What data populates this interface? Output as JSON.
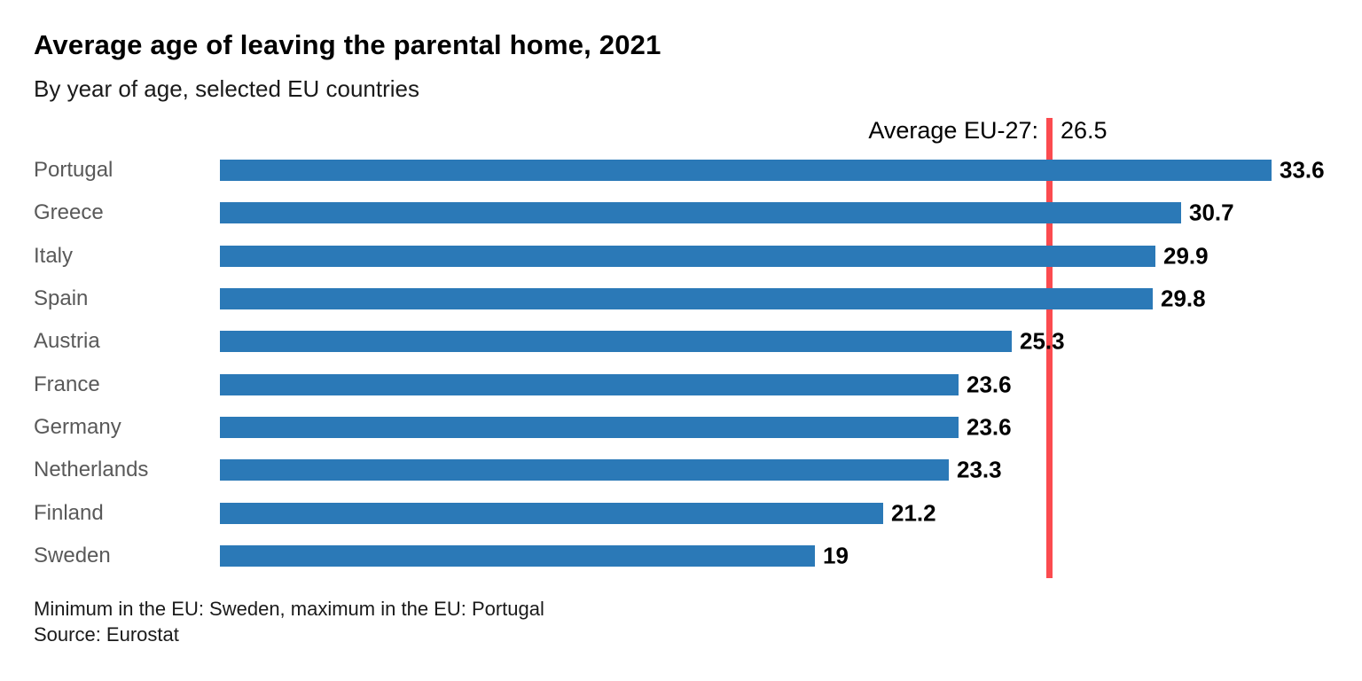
{
  "chart_data": {
    "type": "bar",
    "orientation": "horizontal",
    "title": "Average age of leaving the parental home, 2021",
    "subtitle": "By year of age, selected EU countries",
    "categories": [
      "Portugal",
      "Greece",
      "Italy",
      "Spain",
      "Austria",
      "France",
      "Germany",
      "Netherlands",
      "Finland",
      "Sweden"
    ],
    "values": [
      33.6,
      30.7,
      29.9,
      29.8,
      25.3,
      23.6,
      23.6,
      23.3,
      21.2,
      19
    ],
    "value_labels": [
      "33.6",
      "30.7",
      "29.9",
      "29.8",
      "25.3",
      "23.6",
      "23.6",
      "23.3",
      "21.2",
      "19"
    ],
    "reference_line": {
      "label": "Average EU-27:",
      "value": 26.5,
      "value_label": "26.5",
      "color": "#fb4b4f"
    },
    "xlim": [
      0,
      34
    ],
    "grid": false,
    "legend": false,
    "colors": {
      "bar": "#2b79b7",
      "category_label": "#595959",
      "value_label": "#000000"
    },
    "note": "Minimum in the EU: Sweden, maximum in the EU: Portugal",
    "source": "Source: Eurostat"
  }
}
